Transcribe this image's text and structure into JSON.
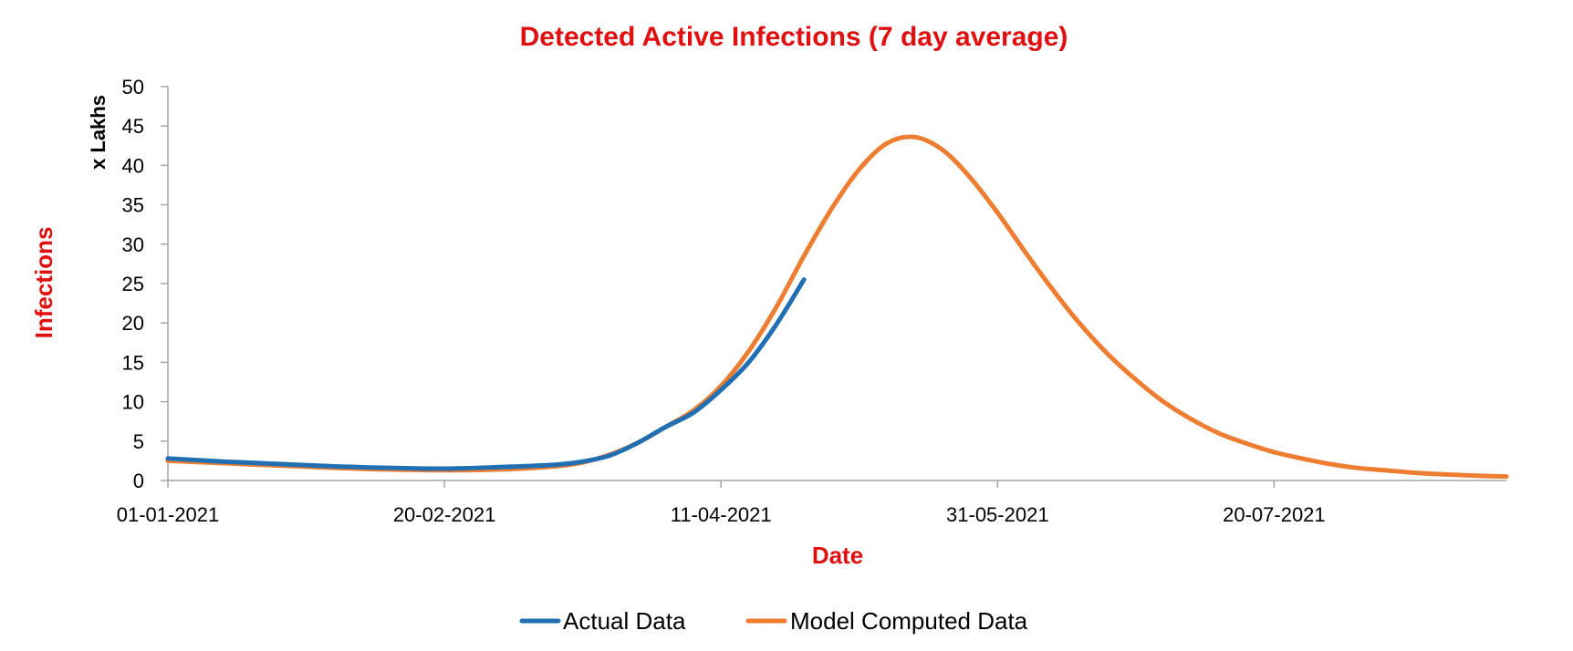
{
  "chart_data": {
    "type": "line",
    "title": "Detected Active Infections (7 day average)",
    "xlabel": "Date",
    "ylabel": "Infections",
    "ylabel_unit": "x Lakhs",
    "ylim": [
      0,
      50
    ],
    "yticks": [
      0,
      5,
      10,
      15,
      20,
      25,
      30,
      35,
      40,
      45,
      50
    ],
    "x_unit": "days since 01-01-2021",
    "xlim": [
      0,
      242
    ],
    "xticks": [
      {
        "day": 0,
        "label": "01-01-2021"
      },
      {
        "day": 50,
        "label": "20-02-2021"
      },
      {
        "day": 100,
        "label": "11-04-2021"
      },
      {
        "day": 150,
        "label": "31-05-2021"
      },
      {
        "day": 200,
        "label": "20-07-2021"
      }
    ],
    "grid": false,
    "legend_position": "bottom",
    "series": [
      {
        "name": "Actual Data",
        "color": "#1f6fb2",
        "x": [
          0,
          10,
          20,
          30,
          40,
          50,
          60,
          70,
          75,
          80,
          85,
          90,
          95,
          100,
          105,
          110,
          115
        ],
        "y": [
          2.8,
          2.4,
          2.1,
          1.8,
          1.6,
          1.5,
          1.7,
          2.0,
          2.4,
          3.2,
          4.8,
          6.8,
          8.6,
          11.5,
          15.0,
          19.8,
          25.5
        ]
      },
      {
        "name": "Model Computed Data",
        "color": "#ed7d31",
        "x": [
          0,
          10,
          20,
          30,
          40,
          50,
          60,
          70,
          75,
          80,
          85,
          90,
          95,
          100,
          105,
          110,
          115,
          120,
          125,
          130,
          135,
          140,
          145,
          150,
          155,
          160,
          165,
          170,
          175,
          180,
          185,
          190,
          195,
          200,
          205,
          210,
          215,
          220,
          225,
          230,
          235,
          242
        ],
        "y": [
          2.5,
          2.2,
          1.9,
          1.6,
          1.4,
          1.3,
          1.4,
          1.8,
          2.3,
          3.3,
          4.8,
          6.8,
          8.9,
          12.0,
          16.4,
          22.0,
          28.5,
          34.5,
          39.5,
          42.8,
          43.6,
          42.0,
          38.5,
          34.0,
          29.0,
          24.2,
          19.8,
          16.0,
          12.8,
          10.0,
          7.8,
          6.0,
          4.7,
          3.6,
          2.8,
          2.1,
          1.6,
          1.3,
          1.0,
          0.8,
          0.65,
          0.5
        ]
      }
    ]
  }
}
